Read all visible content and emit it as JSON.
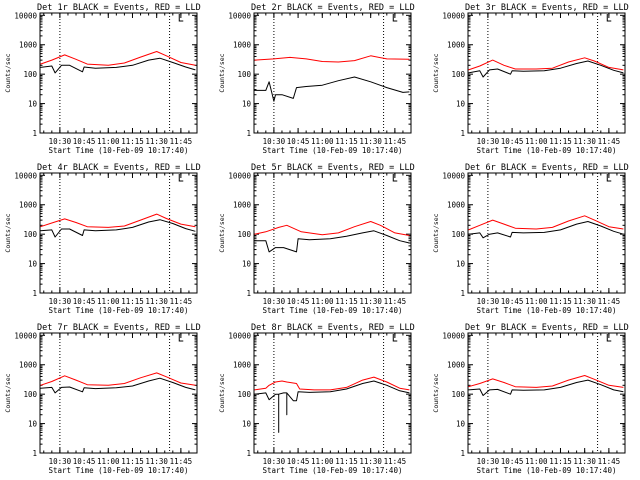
{
  "figure": {
    "time_ticks": [
      "10:30",
      "10:45",
      "11:00",
      "11:15",
      "11:30",
      "11:45"
    ],
    "y_ticks": [
      "1",
      "10",
      "100",
      "1000",
      "10000"
    ],
    "xlabel": "Start Time (10-Feb-09 10:17:40)",
    "ylabel": "Counts/sec",
    "colors": {
      "events": "#000000",
      "lld": "#ff0000",
      "axes": "#000000"
    }
  },
  "chart_data": [
    {
      "type": "line",
      "title": "Det 1r BLACK = Events, RED = LLD",
      "y_scale": "log",
      "ylim": [
        1,
        12000
      ],
      "x_range": [
        "10:17:40",
        "11:55:00"
      ],
      "x_ticks": [
        "10:30",
        "10:45",
        "11:00",
        "11:15",
        "11:30",
        "11:45"
      ],
      "y_ticks": [
        1,
        10,
        100,
        1000,
        10000
      ],
      "xlabel": "Start Time (10-Feb-09 10:17:40)",
      "ylabel": "Counts/sec",
      "vlines": [
        "10:30",
        "11:38"
      ],
      "series": [
        {
          "color": "#ff0000",
          "x": [
            "10:18",
            "10:25",
            "10:33",
            "10:40",
            "10:47",
            "11:00",
            "11:10",
            "11:20",
            "11:30",
            "11:36",
            "11:45",
            "11:54"
          ],
          "y": [
            220,
            300,
            450,
            320,
            220,
            200,
            240,
            380,
            590,
            420,
            250,
            200
          ]
        },
        {
          "color": "#000000",
          "x": [
            "10:18",
            "10:25",
            "10:27",
            "10:31",
            "10:36",
            "10:44",
            "10:45",
            "10:52",
            "11:05",
            "11:15",
            "11:25",
            "11:32",
            "11:40",
            "11:48",
            "11:54"
          ],
          "y": [
            170,
            190,
            110,
            200,
            200,
            120,
            175,
            160,
            170,
            200,
            300,
            350,
            250,
            175,
            140
          ]
        }
      ]
    },
    {
      "type": "line",
      "title": "Det 2r BLACK = Events, RED = LLD",
      "y_scale": "log",
      "ylim": [
        1,
        12000
      ],
      "x_range": [
        "10:17:40",
        "11:55:00"
      ],
      "x_ticks": [
        "10:30",
        "10:45",
        "11:00",
        "11:15",
        "11:30",
        "11:45"
      ],
      "y_ticks": [
        1,
        10,
        100,
        1000,
        10000
      ],
      "xlabel": "Start Time (10-Feb-09 10:17:40)",
      "ylabel": "Counts/sec",
      "vlines": [
        "10:30",
        "11:38"
      ],
      "series": [
        {
          "color": "#ff0000",
          "x": [
            "10:18",
            "10:30",
            "10:40",
            "10:50",
            "11:00",
            "11:10",
            "11:20",
            "11:30",
            "11:40",
            "11:54"
          ],
          "y": [
            300,
            330,
            370,
            330,
            270,
            260,
            290,
            420,
            330,
            320
          ]
        },
        {
          "color": "#000000",
          "x": [
            "10:18",
            "10:25",
            "10:27",
            "10:30",
            "10:31",
            "10:35",
            "10:42",
            "10:44",
            "10:50",
            "11:00",
            "11:10",
            "11:20",
            "11:30",
            "11:40",
            "11:50",
            "11:54"
          ],
          "y": [
            28,
            28,
            55,
            12,
            20,
            20,
            15,
            35,
            38,
            42,
            60,
            80,
            55,
            35,
            24,
            25
          ]
        }
      ]
    },
    {
      "type": "line",
      "title": "Det 3r BLACK = Events, RED = LLD",
      "y_scale": "log",
      "ylim": [
        1,
        12000
      ],
      "x_range": [
        "10:17:40",
        "11:55:00"
      ],
      "x_ticks": [
        "10:30",
        "10:45",
        "11:00",
        "11:15",
        "11:30",
        "11:45"
      ],
      "y_ticks": [
        1,
        10,
        100,
        1000,
        10000
      ],
      "xlabel": "Start Time (10-Feb-09 10:17:40)",
      "ylabel": "Counts/sec",
      "vlines": [
        "10:30",
        "11:38"
      ],
      "series": [
        {
          "color": "#ff0000",
          "x": [
            "10:18",
            "10:25",
            "10:33",
            "10:40",
            "10:47",
            "11:00",
            "11:10",
            "11:20",
            "11:30",
            "11:36",
            "11:45",
            "11:54"
          ],
          "y": [
            140,
            190,
            300,
            200,
            150,
            150,
            160,
            260,
            360,
            280,
            170,
            140
          ]
        },
        {
          "color": "#000000",
          "x": [
            "10:18",
            "10:25",
            "10:27",
            "10:31",
            "10:36",
            "10:44",
            "10:45",
            "10:52",
            "11:05",
            "11:15",
            "11:25",
            "11:32",
            "11:40",
            "11:48",
            "11:54"
          ],
          "y": [
            110,
            130,
            80,
            140,
            150,
            100,
            130,
            125,
            130,
            160,
            230,
            280,
            200,
            135,
            110
          ]
        }
      ]
    },
    {
      "type": "line",
      "title": "Det 4r BLACK = Events, RED = LLD",
      "y_scale": "log",
      "ylim": [
        1,
        12000
      ],
      "x_range": [
        "10:17:40",
        "11:55:00"
      ],
      "x_ticks": [
        "10:30",
        "10:45",
        "11:00",
        "11:15",
        "11:30",
        "11:45"
      ],
      "y_ticks": [
        1,
        10,
        100,
        1000,
        10000
      ],
      "xlabel": "Start Time (10-Feb-09 10:17:40)",
      "ylabel": "Counts/sec",
      "vlines": [
        "10:30",
        "11:38"
      ],
      "series": [
        {
          "color": "#ff0000",
          "x": [
            "10:18",
            "10:25",
            "10:33",
            "10:40",
            "10:47",
            "11:00",
            "11:10",
            "11:20",
            "11:30",
            "11:36",
            "11:45",
            "11:54"
          ],
          "y": [
            180,
            240,
            330,
            250,
            180,
            170,
            190,
            300,
            480,
            340,
            220,
            180
          ]
        },
        {
          "color": "#000000",
          "x": [
            "10:18",
            "10:25",
            "10:27",
            "10:31",
            "10:36",
            "10:44",
            "10:45",
            "10:52",
            "11:05",
            "11:15",
            "11:25",
            "11:32",
            "11:40",
            "11:48",
            "11:54"
          ],
          "y": [
            130,
            140,
            80,
            150,
            150,
            90,
            140,
            130,
            140,
            170,
            260,
            310,
            230,
            155,
            125
          ]
        }
      ]
    },
    {
      "type": "line",
      "title": "Det 5r BLACK = Events, RED = LLD",
      "y_scale": "log",
      "ylim": [
        1,
        12000
      ],
      "x_range": [
        "10:17:40",
        "11:55:00"
      ],
      "x_ticks": [
        "10:30",
        "10:45",
        "11:00",
        "11:15",
        "11:30",
        "11:45"
      ],
      "y_ticks": [
        1,
        10,
        100,
        1000,
        10000
      ],
      "xlabel": "Start Time (10-Feb-09 10:17:40)",
      "ylabel": "Counts/sec",
      "vlines": [
        "10:30",
        "11:38"
      ],
      "series": [
        {
          "color": "#ff0000",
          "x": [
            "10:18",
            "10:25",
            "10:33",
            "10:38",
            "10:47",
            "11:00",
            "11:10",
            "11:20",
            "11:30",
            "11:36",
            "11:45",
            "11:54"
          ],
          "y": [
            100,
            120,
            170,
            200,
            120,
            95,
            110,
            180,
            270,
            200,
            110,
            90
          ]
        },
        {
          "color": "#000000",
          "x": [
            "10:18",
            "10:25",
            "10:27",
            "10:31",
            "10:36",
            "10:44",
            "10:45",
            "10:52",
            "11:05",
            "11:15",
            "11:25",
            "11:32",
            "11:40",
            "11:48",
            "11:54"
          ],
          "y": [
            60,
            60,
            25,
            35,
            35,
            25,
            70,
            65,
            70,
            85,
            110,
            130,
            90,
            60,
            50
          ]
        }
      ]
    },
    {
      "type": "line",
      "title": "Det 6r BLACK = Events, RED = LLD",
      "y_scale": "log",
      "ylim": [
        1,
        12000
      ],
      "x_range": [
        "10:17:40",
        "11:55:00"
      ],
      "x_ticks": [
        "10:30",
        "10:45",
        "11:00",
        "11:15",
        "11:30",
        "11:45"
      ],
      "y_ticks": [
        1,
        10,
        100,
        1000,
        10000
      ],
      "xlabel": "Start Time (10-Feb-09 10:17:40)",
      "ylabel": "Counts/sec",
      "vlines": [
        "10:30",
        "11:38"
      ],
      "series": [
        {
          "color": "#ff0000",
          "x": [
            "10:18",
            "10:25",
            "10:33",
            "10:40",
            "10:47",
            "11:00",
            "11:10",
            "11:20",
            "11:30",
            "11:36",
            "11:45",
            "11:54"
          ],
          "y": [
            140,
            200,
            300,
            220,
            160,
            150,
            170,
            280,
            420,
            300,
            180,
            150
          ]
        },
        {
          "color": "#000000",
          "x": [
            "10:18",
            "10:25",
            "10:27",
            "10:31",
            "10:36",
            "10:44",
            "10:45",
            "10:52",
            "11:05",
            "11:15",
            "11:25",
            "11:32",
            "11:40",
            "11:48",
            "11:54"
          ],
          "y": [
            100,
            110,
            75,
            100,
            110,
            80,
            115,
            110,
            115,
            140,
            220,
            270,
            190,
            125,
            100
          ]
        }
      ]
    },
    {
      "type": "line",
      "title": "Det 7r BLACK = Events, RED = LLD",
      "y_scale": "log",
      "ylim": [
        1,
        12000
      ],
      "x_range": [
        "10:17:40",
        "11:55:00"
      ],
      "x_ticks": [
        "10:30",
        "10:45",
        "11:00",
        "11:15",
        "11:30",
        "11:45"
      ],
      "y_ticks": [
        1,
        10,
        100,
        1000,
        10000
      ],
      "xlabel": "Start Time (10-Feb-09 10:17:40)",
      "ylabel": "Counts/sec",
      "vlines": [
        "10:30",
        "11:38"
      ],
      "series": [
        {
          "color": "#ff0000",
          "x": [
            "10:18",
            "10:25",
            "10:33",
            "10:40",
            "10:47",
            "11:00",
            "11:10",
            "11:20",
            "11:30",
            "11:36",
            "11:45",
            "11:54"
          ],
          "y": [
            200,
            270,
            420,
            300,
            210,
            200,
            230,
            360,
            530,
            390,
            240,
            200
          ]
        },
        {
          "color": "#000000",
          "x": [
            "10:18",
            "10:25",
            "10:27",
            "10:31",
            "10:36",
            "10:44",
            "10:45",
            "10:52",
            "11:05",
            "11:15",
            "11:25",
            "11:32",
            "11:40",
            "11:48",
            "11:54"
          ],
          "y": [
            160,
            170,
            110,
            170,
            175,
            120,
            165,
            155,
            165,
            190,
            280,
            350,
            250,
            170,
            140
          ]
        }
      ]
    },
    {
      "type": "line",
      "title": "Det 8r BLACK = Events, RED = LLD",
      "y_scale": "log",
      "ylim": [
        1,
        12000
      ],
      "x_range": [
        "10:17:40",
        "11:55:00"
      ],
      "x_ticks": [
        "10:30",
        "10:45",
        "11:00",
        "11:15",
        "11:30",
        "11:45"
      ],
      "y_ticks": [
        1,
        10,
        100,
        1000,
        10000
      ],
      "xlabel": "Start Time (10-Feb-09 10:17:40)",
      "ylabel": "Counts/sec",
      "vlines": [
        "10:30",
        "11:38"
      ],
      "series": [
        {
          "color": "#ff0000",
          "x": [
            "10:18",
            "10:25",
            "10:27",
            "10:31",
            "10:35",
            "10:38",
            "10:44",
            "10:46",
            "10:55",
            "11:05",
            "11:15",
            "11:25",
            "11:32",
            "11:40",
            "11:48",
            "11:54"
          ],
          "y": [
            140,
            160,
            200,
            260,
            280,
            260,
            230,
            150,
            140,
            140,
            170,
            300,
            380,
            260,
            160,
            140
          ]
        },
        {
          "color": "#000000",
          "x": [
            "10:18",
            "10:25",
            "10:27",
            "10:31",
            "10:33",
            "10:33",
            "10:33",
            "10:36",
            "10:38",
            "10:38",
            "10:38",
            "10:42",
            "10:44",
            "10:45",
            "10:52",
            "11:05",
            "11:15",
            "11:25",
            "11:32",
            "11:40",
            "11:48",
            "11:54"
          ],
          "y": [
            100,
            110,
            65,
            100,
            100,
            5,
            100,
            110,
            110,
            20,
            110,
            60,
            60,
            120,
            115,
            120,
            150,
            230,
            280,
            200,
            130,
            110
          ]
        }
      ]
    },
    {
      "type": "line",
      "title": "Det 9r BLACK = Events, RED = LLD",
      "y_scale": "log",
      "ylim": [
        1,
        12000
      ],
      "x_range": [
        "10:17:40",
        "11:55:00"
      ],
      "x_ticks": [
        "10:30",
        "10:45",
        "11:00",
        "11:15",
        "11:30",
        "11:45"
      ],
      "y_ticks": [
        1,
        10,
        100,
        1000,
        10000
      ],
      "xlabel": "Start Time (10-Feb-09 10:17:40)",
      "ylabel": "Counts/sec",
      "vlines": [
        "10:30",
        "11:38"
      ],
      "series": [
        {
          "color": "#ff0000",
          "x": [
            "10:18",
            "10:25",
            "10:33",
            "10:40",
            "10:47",
            "11:00",
            "11:10",
            "11:20",
            "11:30",
            "11:36",
            "11:45",
            "11:54"
          ],
          "y": [
            180,
            230,
            330,
            250,
            180,
            170,
            190,
            300,
            430,
            320,
            200,
            170
          ]
        },
        {
          "color": "#000000",
          "x": [
            "10:18",
            "10:25",
            "10:27",
            "10:31",
            "10:36",
            "10:44",
            "10:45",
            "10:52",
            "11:05",
            "11:15",
            "11:25",
            "11:32",
            "11:40",
            "11:48",
            "11:54"
          ],
          "y": [
            140,
            150,
            90,
            140,
            145,
            100,
            140,
            135,
            140,
            170,
            250,
            300,
            210,
            140,
            120
          ]
        }
      ]
    }
  ]
}
